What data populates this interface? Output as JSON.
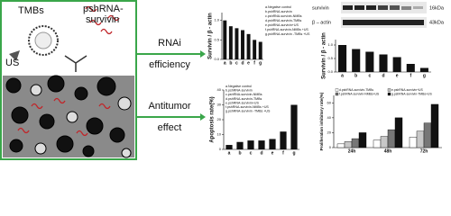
{
  "diagram": {
    "tmbs": "TMBs",
    "pshrna_line1": "pshRNA-",
    "pshrna_line2": "survivin",
    "us": "US",
    "rnai_line1": "RNAi",
    "rnai_line2": "efficiency",
    "antitumor_line1": "Antitumor",
    "antitumor_line2": "effect",
    "blot_labels": [
      "survivin",
      "β – actin"
    ],
    "blot_sizes": [
      "16kDa",
      "43kDa"
    ]
  },
  "chart_data": [
    {
      "type": "bar",
      "ylabel": "Survivin / β - actin",
      "categories": [
        "a",
        "b",
        "c",
        "d",
        "e",
        "f",
        "g"
      ],
      "values": [
        1.0,
        0.85,
        0.8,
        0.75,
        0.65,
        0.5,
        0.45
      ],
      "color": "#111111",
      "ylim": [
        0,
        1.2
      ],
      "yticks": [
        {
          "value": 0,
          "label": "0.0"
        },
        0.5,
        {
          "value": 1,
          "label": "1.0"
        }
      ],
      "legend_text": [
        "a.Negative control",
        "b.pshRNA-survivin",
        "c.pshRNA-survivin-NMBs",
        "d.pshRNA-survivin-TMBs",
        "e.pshRNA-survivin+US",
        "f.pshRNA-survivin-NMBs +US",
        "g.pshRNA-survivin -TMBs +US"
      ]
    },
    {
      "type": "bar",
      "ylabel": "Apoptosis rate(%)",
      "categories": [
        "a",
        "b",
        "c",
        "d",
        "e",
        "f",
        "g"
      ],
      "values": [
        3,
        5,
        6,
        6,
        7,
        12,
        30
      ],
      "color": "#111111",
      "ylim": [
        0,
        40
      ],
      "yticks": [
        0,
        10,
        20,
        30,
        40
      ],
      "legend_text": [
        "a.Negative control",
        "b.pshRNA-survivin",
        "c.pshRNA-survivin-NMBs",
        "d.pshRNA-survivin-TMBs",
        "e.pshRNA-survivin+US",
        "f.pshRNA-survivin-NMBs +US",
        "g.pshRNA-survivin -TMBs +US"
      ]
    },
    {
      "type": "bar",
      "ylabel": "Survivin / β - actin",
      "categories": [
        "a",
        "b",
        "c",
        "d",
        "e",
        "f",
        "g"
      ],
      "values": [
        1.0,
        0.85,
        0.75,
        0.65,
        0.55,
        0.3,
        0.15
      ],
      "color": "#111111",
      "ylim": [
        0,
        1.2
      ],
      "yticks": [
        {
          "value": 0,
          "label": "0.0"
        },
        0.5,
        {
          "value": 1,
          "label": "1.0"
        }
      ]
    },
    {
      "type": "grouped-bar",
      "ylabel": "Proliferation inhibitory rate(%)",
      "categories": [
        "24h",
        "48h",
        "72h"
      ],
      "series": [
        {
          "name": "d.pshRNA-survivin-TMBs",
          "color": "#ffffff",
          "values": [
            5,
            10,
            14
          ]
        },
        {
          "name": "e.pshRNA-survivin+US",
          "color": "#c8c8c8",
          "values": [
            8,
            15,
            22
          ]
        },
        {
          "name": "f.pshRNA-survivin-NMBs+US",
          "color": "#777777",
          "values": [
            12,
            24,
            33
          ]
        },
        {
          "name": "g.pshRNA-survivin-TMBs+US",
          "color": "#111111",
          "values": [
            20,
            40,
            58
          ]
        }
      ],
      "ylim": [
        0,
        70
      ],
      "yticks": [
        0,
        20,
        40,
        60
      ]
    }
  ]
}
